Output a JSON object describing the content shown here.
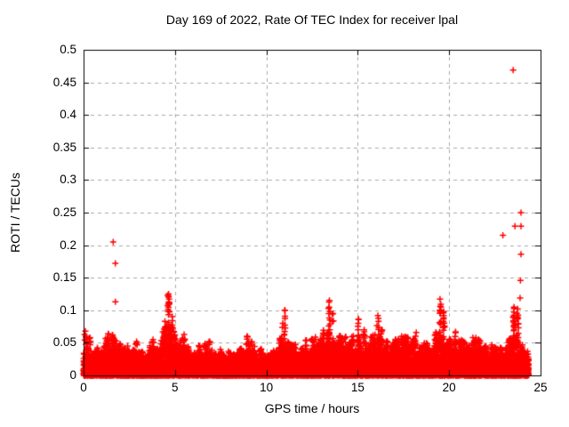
{
  "chart_data": {
    "type": "scatter",
    "title": "Day 169 of 2022, Rate Of TEC Index for receiver lpal",
    "xlabel": "GPS time / hours",
    "ylabel": "ROTI / TECUs",
    "xlim": [
      0,
      25
    ],
    "ylim": [
      0,
      0.5
    ],
    "x_ticks": [
      {
        "v": 0,
        "label": "0"
      },
      {
        "v": 5,
        "label": "5"
      },
      {
        "v": 10,
        "label": "10"
      },
      {
        "v": 15,
        "label": "15"
      },
      {
        "v": 20,
        "label": "20"
      },
      {
        "v": 25,
        "label": "25"
      }
    ],
    "y_ticks": [
      {
        "v": 0,
        "label": "0"
      },
      {
        "v": 0.05,
        "label": "0.05"
      },
      {
        "v": 0.1,
        "label": "0.1"
      },
      {
        "v": 0.15,
        "label": "0.15"
      },
      {
        "v": 0.2,
        "label": "0.2"
      },
      {
        "v": 0.25,
        "label": "0.25"
      },
      {
        "v": 0.3,
        "label": "0.3"
      },
      {
        "v": 0.35,
        "label": "0.35"
      },
      {
        "v": 0.4,
        "label": "0.4"
      },
      {
        "v": 0.45,
        "label": "0.45"
      },
      {
        "v": 0.5,
        "label": "0.5"
      }
    ],
    "grid": "dashed",
    "grid_color": "#a8a8a8",
    "frame_color": "#000000",
    "marker": "plus",
    "marker_color": "#ff0000",
    "x_data_range": [
      0,
      24.35
    ],
    "band_profile": [
      [
        0.0,
        0.05
      ],
      [
        0.5,
        0.038
      ],
      [
        1.0,
        0.044
      ],
      [
        1.5,
        0.052
      ],
      [
        2.0,
        0.042
      ],
      [
        2.5,
        0.04
      ],
      [
        3.0,
        0.042
      ],
      [
        3.5,
        0.039
      ],
      [
        4.0,
        0.044
      ],
      [
        4.5,
        0.062
      ],
      [
        4.75,
        0.07
      ],
      [
        5.0,
        0.052
      ],
      [
        5.5,
        0.05
      ],
      [
        6.0,
        0.04
      ],
      [
        6.5,
        0.041
      ],
      [
        7.0,
        0.046
      ],
      [
        7.5,
        0.04
      ],
      [
        8.0,
        0.037
      ],
      [
        8.5,
        0.041
      ],
      [
        9.0,
        0.052
      ],
      [
        9.5,
        0.04
      ],
      [
        10.0,
        0.035
      ],
      [
        10.5,
        0.041
      ],
      [
        11.0,
        0.055
      ],
      [
        11.5,
        0.04
      ],
      [
        12.0,
        0.043
      ],
      [
        12.5,
        0.048
      ],
      [
        13.0,
        0.055
      ],
      [
        13.5,
        0.068
      ],
      [
        14.0,
        0.051
      ],
      [
        14.5,
        0.046
      ],
      [
        15.0,
        0.055
      ],
      [
        15.5,
        0.05
      ],
      [
        16.0,
        0.058
      ],
      [
        16.5,
        0.045
      ],
      [
        17.0,
        0.049
      ],
      [
        17.5,
        0.052
      ],
      [
        18.0,
        0.049
      ],
      [
        18.5,
        0.042
      ],
      [
        19.0,
        0.044
      ],
      [
        19.5,
        0.065
      ],
      [
        20.0,
        0.051
      ],
      [
        20.5,
        0.049
      ],
      [
        21.0,
        0.044
      ],
      [
        21.5,
        0.047
      ],
      [
        22.0,
        0.04
      ],
      [
        22.5,
        0.042
      ],
      [
        23.0,
        0.046
      ],
      [
        23.5,
        0.052
      ],
      [
        24.0,
        0.048
      ],
      [
        24.35,
        0.038
      ]
    ],
    "spikes": [
      [
        0.1,
        0.068,
        6
      ],
      [
        0.35,
        0.058,
        4
      ],
      [
        1.35,
        0.064,
        6
      ],
      [
        1.62,
        0.058,
        4
      ],
      [
        2.9,
        0.052,
        3
      ],
      [
        3.8,
        0.055,
        3
      ],
      [
        4.45,
        0.083,
        6
      ],
      [
        4.65,
        0.125,
        24
      ],
      [
        4.85,
        0.09,
        8
      ],
      [
        5.5,
        0.063,
        5
      ],
      [
        6.9,
        0.052,
        3
      ],
      [
        8.95,
        0.06,
        5
      ],
      [
        9.2,
        0.052,
        3
      ],
      [
        10.9,
        0.08,
        6
      ],
      [
        11.0,
        0.1,
        9
      ],
      [
        12.5,
        0.056,
        4
      ],
      [
        13.1,
        0.065,
        5
      ],
      [
        13.45,
        0.115,
        18
      ],
      [
        13.65,
        0.095,
        10
      ],
      [
        14.0,
        0.06,
        4
      ],
      [
        15.05,
        0.086,
        8
      ],
      [
        15.35,
        0.07,
        5
      ],
      [
        16.1,
        0.092,
        10
      ],
      [
        16.3,
        0.07,
        4
      ],
      [
        17.4,
        0.06,
        4
      ],
      [
        18.2,
        0.066,
        5
      ],
      [
        19.5,
        0.117,
        20
      ],
      [
        19.7,
        0.098,
        12
      ],
      [
        20.35,
        0.067,
        5
      ],
      [
        21.3,
        0.058,
        4
      ],
      [
        23.3,
        0.056,
        4
      ],
      [
        23.55,
        0.105,
        26
      ],
      [
        23.75,
        0.102,
        22
      ]
    ],
    "outliers": [
      [
        1.62,
        0.205
      ],
      [
        1.74,
        0.172
      ],
      [
        1.74,
        0.113
      ],
      [
        4.6,
        0.123
      ],
      [
        22.94,
        0.215
      ],
      [
        23.5,
        0.469
      ],
      [
        23.6,
        0.229
      ],
      [
        23.93,
        0.229
      ],
      [
        23.93,
        0.25
      ],
      [
        23.93,
        0.186
      ],
      [
        23.9,
        0.146
      ],
      [
        23.88,
        0.119
      ],
      [
        23.65,
        0.044
      ]
    ]
  }
}
